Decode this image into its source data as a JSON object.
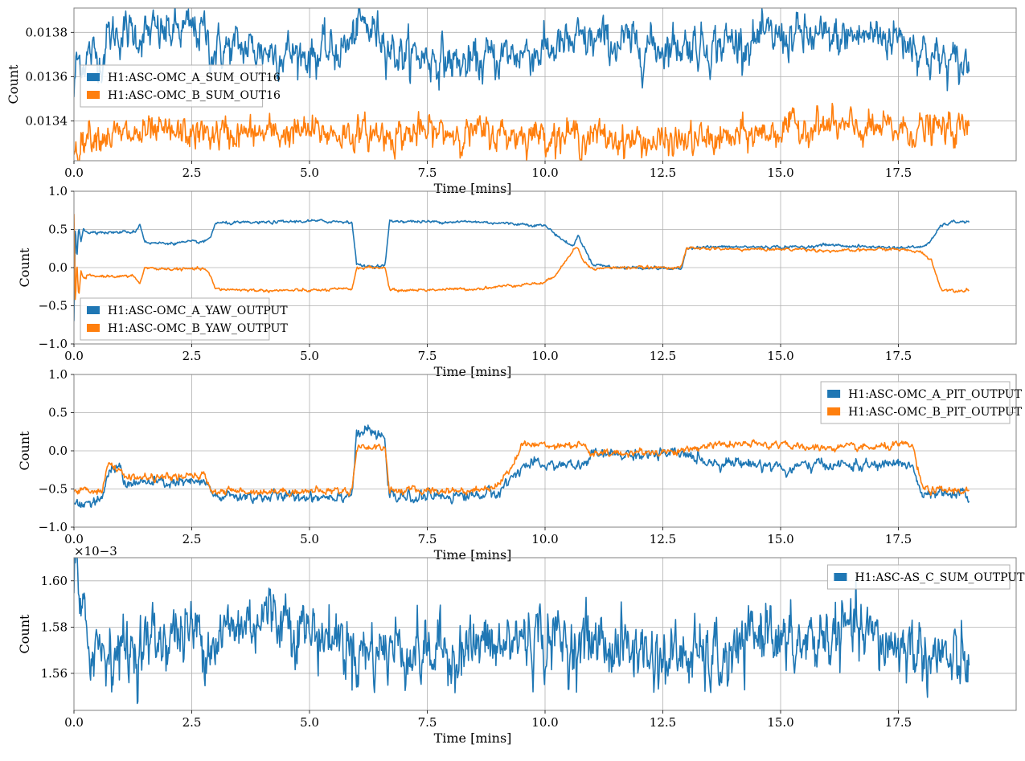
{
  "chart_data": [
    {
      "type": "line",
      "xlabel": "Time [mins]",
      "ylabel": "Count",
      "xlim": [
        0,
        20
      ],
      "ylim": [
        0.01322,
        0.01391
      ],
      "xticks": [
        "0.0",
        "2.5",
        "5.0",
        "7.5",
        "10.0",
        "12.5",
        "15.0",
        "17.5"
      ],
      "xtick_values": [
        0,
        2.5,
        5,
        7.5,
        10,
        12.5,
        15,
        17.5
      ],
      "yticks": [
        "0.0134",
        "0.0136",
        "0.0138"
      ],
      "ytick_values": [
        0.0134,
        0.0136,
        0.0138
      ],
      "grid": true,
      "legend_position": "left",
      "series": [
        {
          "name": "H1:ASC-OMC_A_SUM_OUT16",
          "color": "#1f77b4",
          "noise": 4e-05,
          "x": [
            0,
            0.05,
            0.2,
            0.3,
            0.6,
            0.7,
            1.0,
            1.5,
            2.0,
            2.5,
            2.8,
            2.9,
            3.5,
            4.0,
            4.5,
            5.0,
            5.5,
            5.9,
            6.0,
            6.5,
            6.6,
            6.8,
            7.0,
            7.5,
            8.0,
            8.3,
            8.5,
            9.0,
            9.5,
            10.0,
            10.5,
            11.0,
            11.5,
            12.0,
            12.5,
            13.0,
            13.5,
            14.0,
            14.5,
            15.0,
            15.5,
            16.0,
            16.5,
            17.0,
            17.5,
            17.8,
            18.0,
            18.3,
            18.7,
            19.0
          ],
          "y": [
            0.01352,
            0.01366,
            0.01368,
            0.0137,
            0.01368,
            0.01378,
            0.0138,
            0.01379,
            0.0138,
            0.01381,
            0.0138,
            0.01372,
            0.01373,
            0.01372,
            0.01371,
            0.0137,
            0.01371,
            0.01375,
            0.01383,
            0.0138,
            0.01378,
            0.01371,
            0.0137,
            0.01369,
            0.01367,
            0.01365,
            0.01366,
            0.01369,
            0.01371,
            0.01372,
            0.01374,
            0.01376,
            0.01375,
            0.01374,
            0.01374,
            0.01375,
            0.01374,
            0.01376,
            0.01376,
            0.01378,
            0.01378,
            0.01376,
            0.01378,
            0.01379,
            0.01378,
            0.01376,
            0.01372,
            0.01368,
            0.01365,
            0.01366
          ]
        },
        {
          "name": "H1:ASC-OMC_B_SUM_OUT16",
          "color": "#ff7f0e",
          "noise": 3e-05,
          "x": [
            0,
            0.05,
            0.3,
            1.0,
            2.0,
            3.0,
            4.0,
            5.0,
            6.0,
            7.0,
            8.0,
            9.0,
            10.0,
            11.0,
            12.0,
            12.5,
            13.0,
            14.0,
            15.0,
            15.8,
            16.5,
            17.0,
            18.0,
            19.0
          ],
          "y": [
            0.01326,
            0.01328,
            0.01335,
            0.01333,
            0.01334,
            0.01334,
            0.01334,
            0.01335,
            0.01334,
            0.01334,
            0.01335,
            0.01334,
            0.01334,
            0.01333,
            0.01331,
            0.0133,
            0.01331,
            0.01332,
            0.01336,
            0.01338,
            0.01336,
            0.01336,
            0.01336,
            0.01336
          ]
        }
      ]
    },
    {
      "type": "line",
      "xlabel": "Time [mins]",
      "ylabel": "Count",
      "xlim": [
        0,
        20
      ],
      "ylim": [
        -1.0,
        1.0
      ],
      "xticks": [
        "0.0",
        "2.5",
        "5.0",
        "7.5",
        "10.0",
        "12.5",
        "15.0",
        "17.5"
      ],
      "xtick_values": [
        0,
        2.5,
        5,
        7.5,
        10,
        12.5,
        15,
        17.5
      ],
      "yticks": [
        "−1.0",
        "−0.5",
        "0.0",
        "0.5",
        "1.0"
      ],
      "ytick_values": [
        -1.0,
        -0.5,
        0.0,
        0.5,
        1.0
      ],
      "grid": true,
      "legend_position": "lower-left",
      "series": [
        {
          "name": "H1:ASC-OMC_A_YAW_OUTPUT",
          "color": "#1f77b4",
          "noise": 0.008,
          "x": [
            0,
            0.03,
            0.06,
            0.1,
            0.15,
            0.2,
            0.3,
            0.4,
            0.6,
            0.8,
            1.3,
            1.4,
            1.5,
            1.6,
            2.0,
            2.8,
            2.9,
            3.0,
            4.0,
            5.0,
            5.9,
            6.0,
            6.1,
            6.6,
            6.7,
            6.8,
            7.5,
            8.5,
            9.5,
            10.0,
            10.2,
            10.4,
            10.6,
            10.7,
            10.8,
            11.0,
            11.5,
            12.0,
            12.5,
            12.9,
            13.0,
            13.5,
            14.0,
            14.5,
            15.0,
            15.5,
            16.0,
            16.5,
            17.0,
            17.5,
            18.0,
            18.2,
            18.4,
            18.7,
            19.0
          ],
          "y": [
            -0.7,
            0.6,
            0.1,
            0.55,
            0.35,
            0.52,
            0.44,
            0.48,
            0.46,
            0.46,
            0.47,
            0.57,
            0.35,
            0.32,
            0.32,
            0.34,
            0.4,
            0.58,
            0.59,
            0.61,
            0.6,
            0.05,
            0.02,
            0.02,
            0.6,
            0.61,
            0.6,
            0.6,
            0.57,
            0.55,
            0.45,
            0.35,
            0.28,
            0.42,
            0.3,
            0.05,
            0.0,
            0.0,
            -0.01,
            -0.02,
            0.26,
            0.27,
            0.27,
            0.27,
            0.27,
            0.27,
            0.3,
            0.28,
            0.27,
            0.26,
            0.27,
            0.35,
            0.55,
            0.6,
            0.6
          ]
        },
        {
          "name": "H1:ASC-OMC_B_YAW_OUTPUT",
          "color": "#ff7f0e",
          "noise": 0.008,
          "x": [
            0,
            0.03,
            0.06,
            0.1,
            0.15,
            0.2,
            0.3,
            0.4,
            0.6,
            0.8,
            1.3,
            1.4,
            1.5,
            1.6,
            2.0,
            2.8,
            2.9,
            3.0,
            4.0,
            5.0,
            5.9,
            6.0,
            6.1,
            6.6,
            6.7,
            6.8,
            7.5,
            8.5,
            9.5,
            10.0,
            10.2,
            10.4,
            10.6,
            10.7,
            10.8,
            11.0,
            11.5,
            12.0,
            12.5,
            12.9,
            13.0,
            13.5,
            14.0,
            14.5,
            15.0,
            15.5,
            16.0,
            16.5,
            17.0,
            17.5,
            18.0,
            18.2,
            18.4,
            18.7,
            19.0
          ],
          "y": [
            0.7,
            -0.55,
            0.1,
            -0.4,
            -0.05,
            -0.15,
            -0.1,
            -0.12,
            -0.11,
            -0.11,
            -0.12,
            -0.22,
            0.0,
            -0.01,
            -0.02,
            -0.02,
            -0.12,
            -0.28,
            -0.3,
            -0.3,
            -0.28,
            -0.01,
            0.0,
            0.0,
            -0.28,
            -0.3,
            -0.29,
            -0.28,
            -0.22,
            -0.2,
            -0.1,
            0.05,
            0.25,
            0.25,
            0.1,
            -0.02,
            0.0,
            0.0,
            0.0,
            0.01,
            0.25,
            0.25,
            0.24,
            0.24,
            0.24,
            0.24,
            0.22,
            0.22,
            0.24,
            0.24,
            0.2,
            0.1,
            -0.28,
            -0.3,
            -0.29
          ]
        }
      ]
    },
    {
      "type": "line",
      "xlabel": "Time [mins]",
      "ylabel": "Count",
      "xlim": [
        0,
        20
      ],
      "ylim": [
        -1.0,
        1.0
      ],
      "xticks": [
        "0.0",
        "2.5",
        "5.0",
        "7.5",
        "10.0",
        "12.5",
        "15.0",
        "17.5"
      ],
      "xtick_values": [
        0,
        2.5,
        5,
        7.5,
        10,
        12.5,
        15,
        17.5
      ],
      "yticks": [
        "−1.0",
        "−0.5",
        "0.0",
        "0.5",
        "1.0"
      ],
      "ytick_values": [
        -1.0,
        -0.5,
        0.0,
        0.5,
        1.0
      ],
      "grid": true,
      "legend_position": "top-right",
      "series": [
        {
          "name": "H1:ASC-OMC_A_PIT_OUTPUT",
          "color": "#1f77b4",
          "noise": 0.03,
          "x": [
            0,
            0.6,
            0.7,
            1.0,
            1.1,
            1.2,
            2.0,
            2.8,
            2.9,
            3.0,
            4.0,
            5.0,
            5.9,
            6.0,
            6.2,
            6.6,
            6.7,
            6.8,
            7.5,
            8.5,
            9.0,
            9.3,
            9.5,
            10.0,
            10.8,
            11.0,
            12.0,
            13.0,
            13.5,
            14.0,
            15.0,
            15.1,
            15.2,
            15.4,
            16.0,
            17.0,
            17.5,
            17.8,
            18.0,
            18.2,
            19.0
          ],
          "y": [
            -0.68,
            -0.68,
            -0.3,
            -0.2,
            -0.45,
            -0.42,
            -0.42,
            -0.42,
            -0.55,
            -0.6,
            -0.6,
            -0.6,
            -0.58,
            0.2,
            0.27,
            0.15,
            -0.6,
            -0.62,
            -0.6,
            -0.58,
            -0.55,
            -0.35,
            -0.2,
            -0.18,
            -0.2,
            -0.05,
            -0.05,
            -0.05,
            -0.15,
            -0.15,
            -0.2,
            -0.3,
            -0.25,
            -0.2,
            -0.18,
            -0.2,
            -0.15,
            -0.2,
            -0.6,
            -0.58,
            -0.58
          ]
        },
        {
          "name": "H1:ASC-OMC_B_PIT_OUTPUT",
          "color": "#ff7f0e",
          "noise": 0.02,
          "x": [
            0,
            0.6,
            0.7,
            1.2,
            2.0,
            2.8,
            2.9,
            3.0,
            4.0,
            5.0,
            5.9,
            6.0,
            6.6,
            6.7,
            7.5,
            8.5,
            9.0,
            9.3,
            9.5,
            10.0,
            10.8,
            11.0,
            12.0,
            13.0,
            13.5,
            14.0,
            15.0,
            15.1,
            15.2,
            15.4,
            16.0,
            17.0,
            17.5,
            17.8,
            18.0,
            18.2,
            19.0
          ],
          "y": [
            -0.52,
            -0.52,
            -0.18,
            -0.35,
            -0.35,
            -0.33,
            -0.5,
            -0.53,
            -0.53,
            -0.53,
            -0.52,
            0.05,
            0.05,
            -0.52,
            -0.52,
            -0.52,
            -0.45,
            -0.2,
            0.08,
            0.08,
            0.08,
            -0.05,
            -0.02,
            0.0,
            0.08,
            0.08,
            0.08,
            0.15,
            0.05,
            0.04,
            0.04,
            0.04,
            0.07,
            0.07,
            -0.48,
            -0.52,
            -0.52
          ]
        }
      ]
    },
    {
      "type": "line",
      "xlabel": "Time [mins]",
      "ylabel": "Count",
      "offset_text": "×10−3",
      "xlim": [
        0,
        20
      ],
      "ylim": [
        0.001544,
        0.00161
      ],
      "xticks": [
        "0.0",
        "2.5",
        "5.0",
        "7.5",
        "10.0",
        "12.5",
        "15.0",
        "17.5"
      ],
      "xtick_values": [
        0,
        2.5,
        5,
        7.5,
        10,
        12.5,
        15,
        17.5
      ],
      "yticks": [
        "1.56",
        "1.58",
        "1.60"
      ],
      "ytick_values": [
        0.00156,
        0.00158,
        0.0016
      ],
      "grid": true,
      "legend_position": "top-right",
      "series": [
        {
          "name": "H1:ASC-AS_C_SUM_OUTPUT",
          "color": "#1f77b4",
          "noise": 6e-06,
          "x": [
            0,
            0.05,
            0.15,
            0.3,
            0.5,
            1.0,
            1.5,
            2.0,
            2.5,
            3.0,
            3.5,
            4.0,
            4.5,
            5.0,
            5.5,
            6.0,
            6.5,
            7.0,
            7.5,
            8.0,
            8.5,
            9.0,
            9.5,
            10.0,
            10.5,
            11.0,
            11.5,
            12.0,
            12.5,
            13.0,
            13.5,
            14.0,
            14.5,
            14.8,
            15.0,
            15.5,
            16.0,
            16.5,
            17.0,
            17.5,
            18.0,
            18.5,
            18.8,
            19.0
          ],
          "y": [
            0.001594,
            0.001606,
            0.00158,
            0.001575,
            0.001572,
            0.00157,
            0.001572,
            0.001577,
            0.001578,
            0.001575,
            0.00158,
            0.001586,
            0.001585,
            0.001578,
            0.001576,
            0.00157,
            0.00157,
            0.001572,
            0.001568,
            0.00157,
            0.001572,
            0.00157,
            0.001576,
            0.001575,
            0.001573,
            0.001574,
            0.001572,
            0.00157,
            0.001566,
            0.001568,
            0.001565,
            0.001566,
            0.001576,
            0.001585,
            0.00157,
            0.001572,
            0.001576,
            0.001578,
            0.001574,
            0.001572,
            0.00157,
            0.001566,
            0.00156,
            0.00157
          ]
        }
      ]
    }
  ]
}
